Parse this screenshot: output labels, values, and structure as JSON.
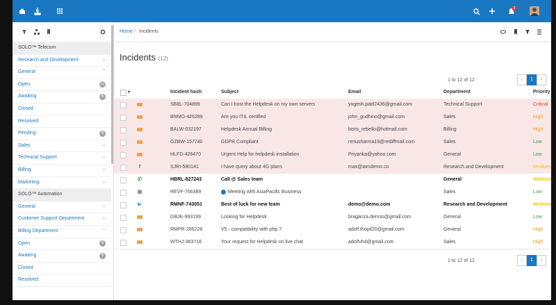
{
  "topbar": {
    "notification_count": 2
  },
  "sidebar": {
    "sections": [
      {
        "title": "SOLO™ Telecom",
        "items": [
          {
            "label": "Research and Development"
          },
          {
            "label": "General",
            "children": [
              {
                "label": "Open",
                "badge": 12
              },
              {
                "label": "Awaiting",
                "badge": 6
              },
              {
                "label": "Closed"
              },
              {
                "label": "Resolved"
              },
              {
                "label": "Pending",
                "badge": 6
              }
            ]
          },
          {
            "label": "Sales"
          },
          {
            "label": "Technical Support"
          },
          {
            "label": "Billing"
          },
          {
            "label": "Marketing"
          }
        ]
      },
      {
        "title": "SOLO™ Automation",
        "items": [
          {
            "label": "General"
          },
          {
            "label": "Customer Support Department"
          },
          {
            "label": "Billing Department",
            "children": [
              {
                "label": "Open",
                "badge": 6
              },
              {
                "label": "Awaiting",
                "badge": 6
              },
              {
                "label": "Closed"
              },
              {
                "label": "Resolved"
              }
            ]
          }
        ]
      }
    ]
  },
  "breadcrumb": [
    "Home",
    "Incidents"
  ],
  "page": {
    "title": "Incidents",
    "count": "(12)"
  },
  "pagination": {
    "top": "1 to 12 of 12",
    "current": 1,
    "bottom": "1 to 12 of 12"
  },
  "table": {
    "columns": [
      "Incident hash",
      "Subject",
      "Email",
      "Department",
      "Priority"
    ],
    "rows": [
      [
        "SB8L-704899",
        "Can I host the Helpdesk on my own servers",
        "yogesh.patil2436@gmail.com",
        "Technical Support",
        "Critical"
      ],
      [
        "BNMO-426289",
        "Are you ITIL certified",
        "john_gudhino@gmail.com",
        "Sales",
        "High"
      ],
      [
        "BALW-032197",
        "Helpdesk Annual Billing",
        "boris_rebello@hotmail.com",
        "Billing",
        "High"
      ],
      [
        "GZBW-157740",
        "GDPR Compliant",
        "renusharma19@rediffmail.com",
        "Sales",
        "Low"
      ],
      [
        "HLFD-426470",
        "Urgent Help for helpdesk installation",
        "Priyanka@yahoo.com",
        "General",
        "Low"
      ],
      [
        "SJRI-580141",
        "I have query about 4G plans",
        "max@iamdemo.co",
        "Research and Development",
        "Medium"
      ],
      [
        "HBRL-827243",
        "Call @ Sales team",
        null,
        "General",
        "Medium"
      ],
      [
        "REVF-766389",
        "Meeting with AsiaPacific Business",
        null,
        "Sales",
        "Low"
      ],
      [
        "RMNF-743051",
        "Best of luck for new team",
        "demo@demo.com",
        "Research and Development",
        "Medium"
      ],
      [
        "GBJK-993199",
        "Looking for Helpdesk",
        "braganza.dennis@gmail.com",
        "General",
        "Low"
      ],
      [
        "RMPR-286228",
        "V5 - compatibility with php 7",
        "adolf.thopil20@gmail.com",
        "General",
        "High"
      ],
      [
        "WTHJ-363716",
        "Your request for Helpdesk on live chat",
        "adolfvhd@gmail.com",
        "Sales",
        "High"
      ]
    ]
  }
}
